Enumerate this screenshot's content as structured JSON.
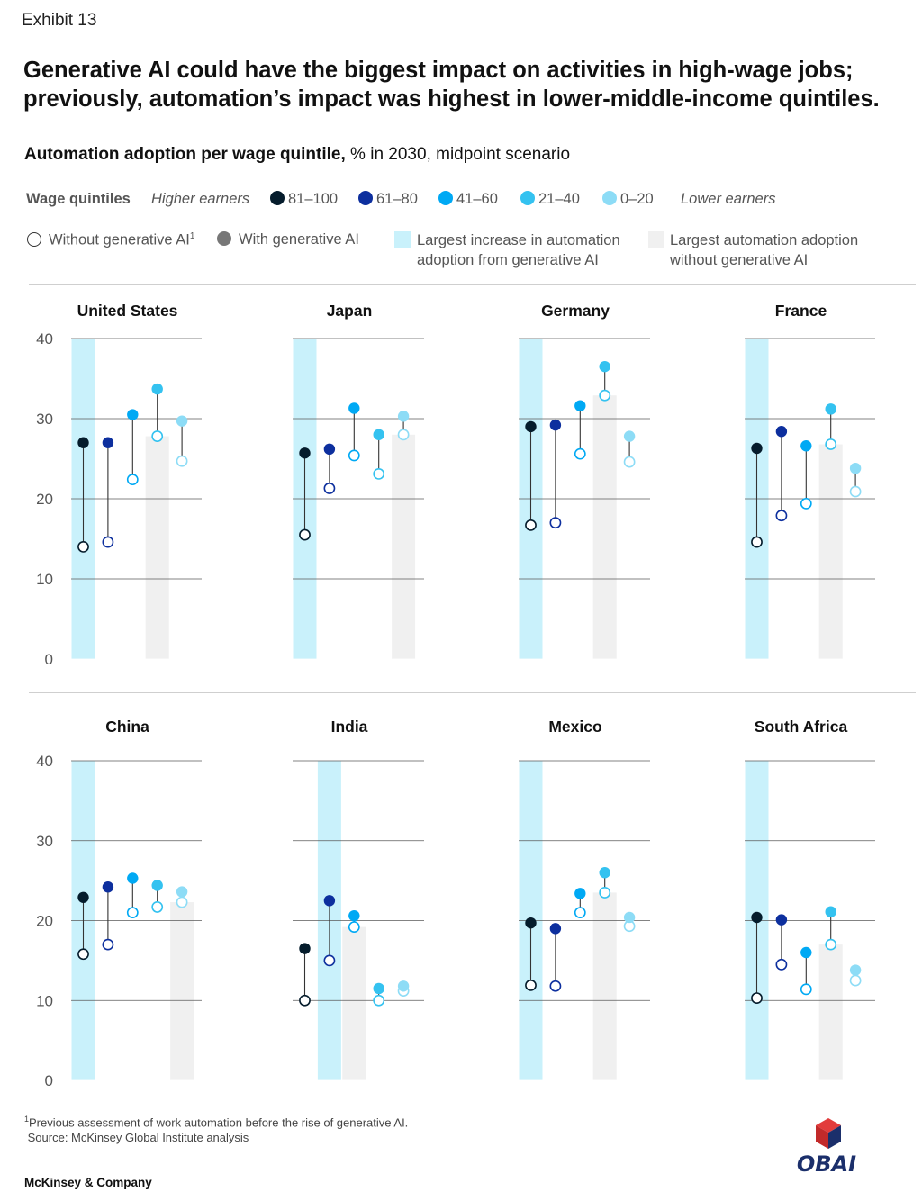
{
  "exhibit": "Exhibit 13",
  "headline": "Generative AI could have the biggest impact on activities in high-wage jobs; previously, automation’s impact was highest in lower-middle-income quintiles.",
  "subtitle_bold": "Automation adoption per wage quintile,",
  "subtitle_rest": " % in 2030, midpoint scenario",
  "legend": {
    "quintiles_label": "Wage quintiles",
    "higher": "Higher earners",
    "lower": "Lower earners",
    "quintiles": [
      {
        "label": "81–100",
        "color": "#051c2c"
      },
      {
        "label": "61–80",
        "color": "#0d2f9e"
      },
      {
        "label": "41–60",
        "color": "#00a9f4"
      },
      {
        "label": "21–40",
        "color": "#34c2f0"
      },
      {
        "label": "0–20",
        "color": "#8ddcf6"
      }
    ],
    "without": "Without generative AI",
    "without_sup": "1",
    "with": "With generative AI",
    "largest_increase_1": "Largest increase in automation",
    "largest_increase_2": "adoption from generative AI",
    "largest_without_1": "Largest automation adoption",
    "largest_without_2": "without generative AI",
    "increase_color": "#c9f1fb",
    "without_color": "#f0f0f0"
  },
  "chart_data": {
    "type": "dumbbell",
    "ylim": [
      0,
      40
    ],
    "yticks": [
      0,
      10,
      20,
      30,
      40
    ],
    "series": [
      "81–100",
      "61–80",
      "41–60",
      "21–40",
      "0–20"
    ],
    "countries": [
      {
        "name": "United States",
        "without": [
          14,
          14.6,
          22.4,
          27.8,
          24.7
        ],
        "with": [
          27,
          27,
          30.5,
          33.7,
          29.7
        ],
        "highlight_increase": 0,
        "highlight_without": 3
      },
      {
        "name": "Japan",
        "without": [
          15.5,
          21.3,
          25.4,
          23.1,
          28
        ],
        "with": [
          25.7,
          26.2,
          31.3,
          28,
          30.3
        ],
        "highlight_increase": 0,
        "highlight_without": 4
      },
      {
        "name": "Germany",
        "without": [
          16.7,
          17,
          25.6,
          32.9,
          24.6
        ],
        "with": [
          29,
          29.2,
          31.6,
          36.5,
          27.8
        ],
        "highlight_increase": 0,
        "highlight_without": 3
      },
      {
        "name": "France",
        "without": [
          14.6,
          17.9,
          19.4,
          26.8,
          20.9
        ],
        "with": [
          26.3,
          28.4,
          26.6,
          31.2,
          23.8
        ],
        "highlight_increase": 0,
        "highlight_without": 3
      },
      {
        "name": "China",
        "without": [
          15.8,
          17,
          21,
          21.7,
          22.3
        ],
        "with": [
          22.9,
          24.2,
          25.3,
          24.4,
          23.6
        ],
        "highlight_increase": 0,
        "highlight_without": 4
      },
      {
        "name": "India",
        "without": [
          10,
          15,
          19.2,
          10,
          11.2
        ],
        "with": [
          16.5,
          22.5,
          20.6,
          11.5,
          11.8
        ],
        "highlight_increase": 1,
        "highlight_without": 2
      },
      {
        "name": "Mexico",
        "without": [
          11.9,
          11.8,
          21,
          23.5,
          19.3
        ],
        "with": [
          19.7,
          19,
          23.4,
          26,
          20.4
        ],
        "highlight_increase": 0,
        "highlight_without": 3
      },
      {
        "name": "South Africa",
        "without": [
          10.3,
          14.5,
          11.4,
          17,
          12.5
        ],
        "with": [
          20.4,
          20.1,
          16,
          21.1,
          13.8
        ],
        "highlight_increase": 0,
        "highlight_without": 3
      }
    ]
  },
  "footnote_sup": "1",
  "footnote": "Previous assessment of work automation before the rise of generative AI.",
  "source": "Source: McKinsey Global Institute analysis",
  "brand": "McKinsey & Company",
  "watermark": "OBAI"
}
